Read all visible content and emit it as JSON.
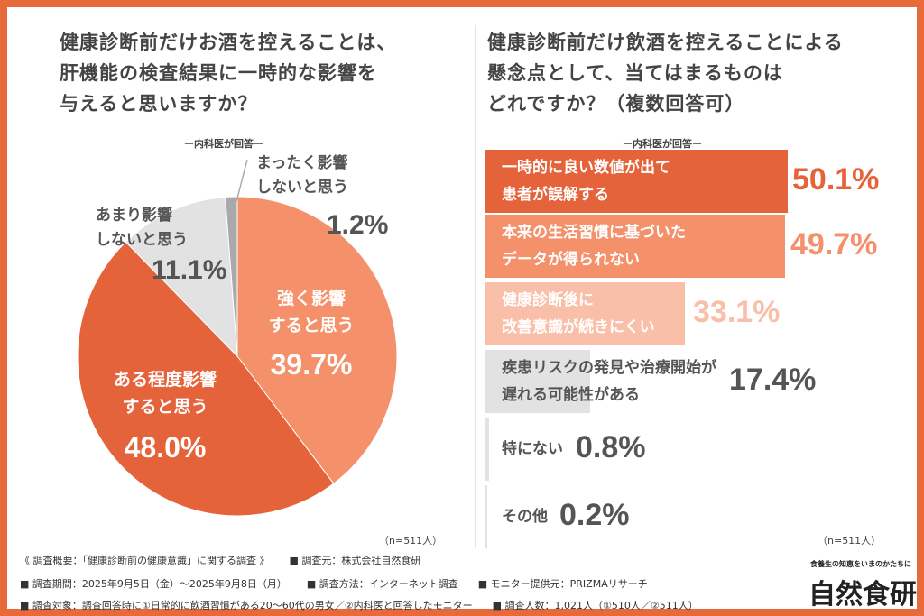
{
  "left": {
    "title": [
      "健康診断前だけお酒を控えることは、",
      "肝機能の検査結果に一時的な影響を",
      "与えると思いますか？"
    ],
    "subtitle": "ー内科医が回答ー",
    "n": "（n=511人）"
  },
  "right": {
    "title": [
      "健康診断前だけ飲酒を控えることによる",
      "懸念点として、当てはまるものは",
      "どれですか？（複数回答可）"
    ],
    "subtitle": "ー内科医が回答ー",
    "n": "（n=511人）"
  },
  "chart_data": [
    {
      "type": "pie",
      "slices": [
        {
          "label": "強く影響すると思う",
          "value": 39.7,
          "display": "39.7%",
          "color": "#f4906a"
        },
        {
          "label": "ある程度影響すると思う",
          "value": 48.0,
          "display": "48.0%",
          "color": "#e5633a"
        },
        {
          "label": "あまり影響しないと思う",
          "value": 11.1,
          "display": "11.1%",
          "color": "#e2e2e2"
        },
        {
          "label": "まったく影響しないと思う",
          "value": 1.2,
          "display": "1.2%",
          "color": "#a9a9a9"
        }
      ]
    },
    {
      "type": "bar",
      "orientation": "horizontal",
      "categories": [
        "一時的に良い数値が出て患者が誤解する",
        "本来の生活習慣に基づいたデータが得られない",
        "健康診断後に改善意識が続きにくい",
        "疾患リスクの発見や治療開始が遅れる可能性がある",
        "特にない",
        "その他"
      ],
      "label_lines": [
        [
          "一時的に良い数値が出て",
          "患者が誤解する"
        ],
        [
          "本来の生活習慣に基づいた",
          "データが得られない"
        ],
        [
          "健康診断後に",
          "改善意識が続きにくい"
        ],
        [
          "疾患リスクの発見や治療開始が",
          "遅れる可能性がある"
        ],
        [
          "特にない"
        ],
        [
          "その他"
        ]
      ],
      "values": [
        50.1,
        49.7,
        33.1,
        17.4,
        0.8,
        0.2
      ],
      "display": [
        "50.1%",
        "49.7%",
        "33.1%",
        "17.4%",
        "0.8%",
        "0.2%"
      ],
      "colors": [
        "#e5633a",
        "#f4906a",
        "#f9bfa8",
        "#e2e2e2",
        "#e2e2e2",
        "#e2e2e2"
      ],
      "label_colors": [
        "#fff",
        "#fff",
        "#fff",
        "#555",
        "#555",
        "#555"
      ],
      "value_colors": [
        "#e5633a",
        "#f4906a",
        "#f9bfa8",
        "#555",
        "#555",
        "#555"
      ]
    }
  ],
  "footer": {
    "line1": [
      "《 調査概要：「健康診断前の健康意識」に関する調査 》",
      "■ 調査元：株式会社自然食研"
    ],
    "line2": [
      "■ 調査期間：2025年9月5日（金）～2025年9月8日（月）",
      "■ 調査方法：インターネット調査",
      "■ モニター提供元：PRIZMAリサーチ"
    ],
    "line3": [
      "■ 調査対象：調査回答時に①日常的に飲酒習慣がある20～60代の男女／②内科医と回答したモニター",
      "■ 調査人数：1,021人（①510人／②511人）"
    ]
  },
  "logo": {
    "tagline": "食養生の知恵をいまのかたちに",
    "name": "自然食研"
  },
  "colors": {
    "border": "#e8693a"
  }
}
